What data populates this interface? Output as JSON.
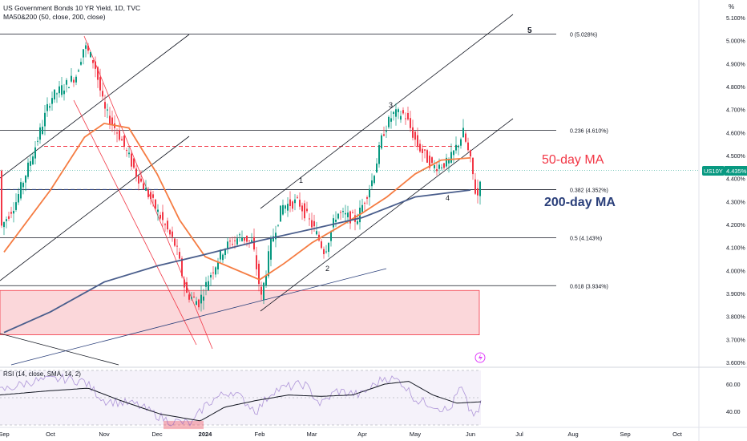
{
  "header": {
    "title": "US Government Bonds 10 YR Yield, 1D, TVC",
    "indicator": "MA50&200 (50, close, 200, close)"
  },
  "colors": {
    "up": "#089981",
    "down": "#f23645",
    "ma50": "#f57c42",
    "ma200": "#4a5e8c",
    "rsi": "#7e57c2",
    "fib_zone": "#f9c9cd",
    "price_tag": "#089981"
  },
  "chart_data": [
    {
      "type": "candlestick",
      "title": "US Government Bonds 10 YR Yield, 1D, TVC",
      "x_ticks": [
        "Sep",
        "Oct",
        "Nov",
        "Dec",
        "2024",
        "Feb",
        "Mar",
        "Apr",
        "May",
        "Jun",
        "Jul",
        "Aug",
        "Sep",
        "Oct"
      ],
      "y_ticks": [
        "5.100%",
        "5.000%",
        "4.900%",
        "4.800%",
        "4.700%",
        "4.600%",
        "4.500%",
        "4.400%",
        "4.300%",
        "4.200%",
        "4.100%",
        "4.000%",
        "3.900%",
        "3.800%",
        "3.700%",
        "3.600%"
      ],
      "ylim": [
        3.6,
        5.1
      ],
      "y_unit": "%",
      "last_value": {
        "symbol": "US10Y",
        "value": "4.435%"
      },
      "series": [
        {
          "name": "MA50",
          "values_description_points": [
            [
              "Sep",
              4.08
            ],
            [
              "Oct",
              4.35
            ],
            [
              "Oct 20",
              4.58
            ],
            [
              "Nov 1",
              4.64
            ],
            [
              "Nov 15",
              4.62
            ],
            [
              "Dec 1",
              4.42
            ],
            [
              "Dec 15",
              4.22
            ],
            [
              "2024",
              4.06
            ],
            [
              "Feb",
              3.96
            ],
            [
              "Feb 15",
              4.03
            ],
            [
              "Mar",
              4.12
            ],
            [
              "Mar 15",
              4.18
            ],
            [
              "Apr",
              4.25
            ],
            [
              "Apr 15",
              4.32
            ],
            [
              "May",
              4.42
            ],
            [
              "May 15",
              4.48
            ],
            [
              "Jun",
              4.49
            ]
          ]
        },
        {
          "name": "MA200",
          "values_description_points": [
            [
              "Sep",
              3.73
            ],
            [
              "Oct",
              3.82
            ],
            [
              "Nov",
              3.95
            ],
            [
              "Dec",
              4.02
            ],
            [
              "2024",
              4.07
            ],
            [
              "Feb",
              4.13
            ],
            [
              "Mar",
              4.18
            ],
            [
              "Apr",
              4.23
            ],
            [
              "May",
              4.32
            ],
            [
              "Jun",
              4.35
            ]
          ]
        }
      ],
      "annotations": {
        "fib_levels": [
          {
            "label": "0 (5.028%)",
            "value": 5.028
          },
          {
            "label": "0.236 (4.610%)",
            "value": 4.61
          },
          {
            "label": "0.382 (4.352%)",
            "value": 4.352
          },
          {
            "label": "0.5 (4.143%)",
            "value": 4.143
          },
          {
            "label": "0.618 (3.934%)",
            "value": 3.934
          }
        ],
        "wave_labels": [
          "1",
          "2",
          "3",
          "4",
          "5"
        ],
        "ma_labels": [
          "50-day MA",
          "200-day MA"
        ]
      }
    },
    {
      "type": "line",
      "title": "RSI (14, close, SMA, 14, 2)",
      "y_ticks": [
        "60.00",
        "40.00"
      ],
      "ylim": [
        30,
        70
      ]
    }
  ]
}
